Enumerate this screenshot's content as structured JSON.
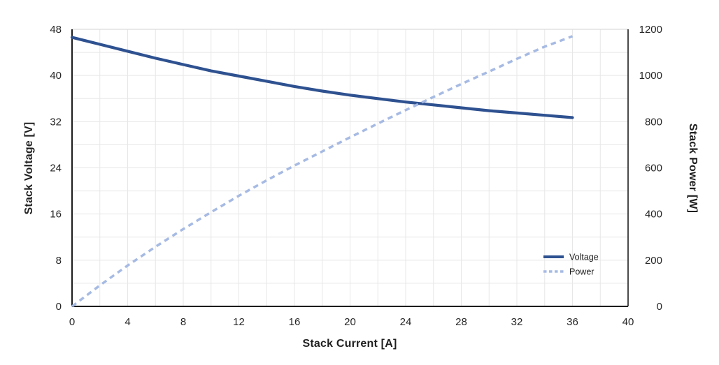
{
  "chart_data": {
    "type": "line",
    "title": "",
    "xlabel": "Stack Current [A]",
    "ylabel_left": "Stack Voltage [V]",
    "ylabel_right": "Stack Power [W]",
    "x_axis": {
      "min": 0,
      "max": 40,
      "tick_step": 4,
      "grid_step": 2,
      "tick_labels": [
        "0",
        "4",
        "8",
        "12",
        "16",
        "20",
        "24",
        "28",
        "32",
        "36",
        "40"
      ]
    },
    "y_left": {
      "min": 0,
      "max": 48,
      "tick_step": 8,
      "grid_step": 4,
      "tick_labels": [
        "0",
        "8",
        "16",
        "24",
        "32",
        "40",
        "48"
      ]
    },
    "y_right": {
      "min": 0,
      "max": 1200,
      "tick_step": 200,
      "grid_step": 100,
      "tick_labels": [
        "0",
        "200",
        "400",
        "600",
        "800",
        "1000",
        "1200"
      ]
    },
    "grid_on": true,
    "legend_position": "inside-bottom-right",
    "colors": {
      "voltage_line": "#2e5190",
      "power_line": "#a6bae3",
      "grid": "#e7e7e7",
      "frame_top": "#dcdcdc",
      "axis": "#1c1c1c",
      "text": "#262626",
      "background": "#ffffff"
    },
    "series": [
      {
        "name": "Voltage",
        "axis": "left",
        "style": "solid",
        "color": "#2e5190",
        "points": [
          [
            0,
            46.6
          ],
          [
            2,
            45.4
          ],
          [
            4,
            44.2
          ],
          [
            6,
            43.0
          ],
          [
            8,
            41.9
          ],
          [
            10,
            40.8
          ],
          [
            12,
            39.9
          ],
          [
            14,
            39.0
          ],
          [
            16,
            38.1
          ],
          [
            18,
            37.3
          ],
          [
            20,
            36.6
          ],
          [
            22,
            36.0
          ],
          [
            24,
            35.4
          ],
          [
            26,
            34.9
          ],
          [
            28,
            34.4
          ],
          [
            30,
            33.9
          ],
          [
            32,
            33.5
          ],
          [
            34,
            33.1
          ],
          [
            36,
            32.7
          ]
        ]
      },
      {
        "name": "Power",
        "axis": "right",
        "style": "dashed",
        "color": "#a6bae3",
        "points": [
          [
            0,
            0
          ],
          [
            2,
            91
          ],
          [
            4,
            177
          ],
          [
            6,
            258
          ],
          [
            8,
            335
          ],
          [
            10,
            408
          ],
          [
            12,
            479
          ],
          [
            14,
            546
          ],
          [
            16,
            610
          ],
          [
            18,
            671
          ],
          [
            20,
            732
          ],
          [
            22,
            792
          ],
          [
            24,
            850
          ],
          [
            26,
            907
          ],
          [
            28,
            963
          ],
          [
            30,
            1017
          ],
          [
            32,
            1072
          ],
          [
            34,
            1125
          ],
          [
            36,
            1170
          ]
        ]
      }
    ]
  }
}
